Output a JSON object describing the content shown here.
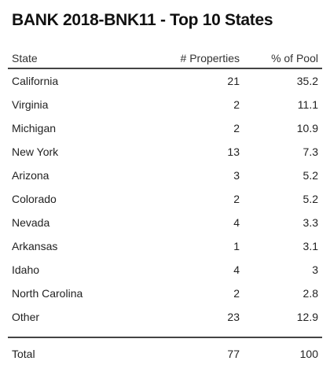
{
  "title": "BANK 2018-BNK11 - Top 10 States",
  "table": {
    "columns": [
      "State",
      "# Properties",
      "% of Pool"
    ],
    "rows": [
      [
        "California",
        21,
        35.2
      ],
      [
        "Virginia",
        2,
        11.1
      ],
      [
        "Michigan",
        2,
        10.9
      ],
      [
        "New York",
        13,
        7.3
      ],
      [
        "Arizona",
        3,
        5.2
      ],
      [
        "Colorado",
        2,
        5.2
      ],
      [
        "Nevada",
        4,
        3.3
      ],
      [
        "Arkansas",
        1,
        3.1
      ],
      [
        "Idaho",
        4,
        3
      ],
      [
        "North Carolina",
        2,
        2.8
      ],
      [
        "Other",
        23,
        12.9
      ]
    ],
    "total": [
      "Total",
      77,
      100
    ]
  }
}
